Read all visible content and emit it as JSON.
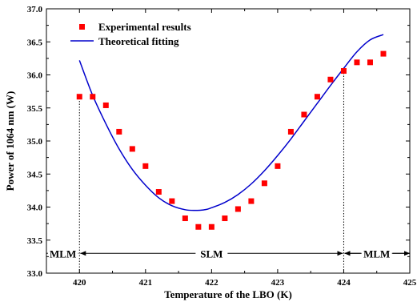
{
  "chart_data": {
    "type": "scatter",
    "title": "",
    "xlabel": "Temperature of the LBO (K)",
    "ylabel": "Power of 1064 nm (W)",
    "xlim": [
      419.5,
      425
    ],
    "ylim": [
      33.0,
      37.0
    ],
    "xticks": [
      420,
      421,
      422,
      423,
      424,
      425
    ],
    "yticks": [
      33.0,
      33.5,
      34.0,
      34.5,
      35.0,
      35.5,
      36.0,
      36.5,
      37.0
    ],
    "grid": false,
    "legend_position": "top-left",
    "series": [
      {
        "name": "Experimental results",
        "kind": "scatter",
        "color": "#ff0000",
        "x": [
          420.0,
          420.2,
          420.4,
          420.6,
          420.8,
          421.0,
          421.2,
          421.4,
          421.6,
          421.8,
          422.0,
          422.2,
          422.4,
          422.6,
          422.8,
          423.0,
          423.2,
          423.4,
          423.6,
          423.8,
          424.0,
          424.2,
          424.4,
          424.6
        ],
        "y": [
          35.67,
          35.67,
          35.54,
          35.14,
          34.88,
          34.62,
          34.23,
          34.09,
          33.83,
          33.7,
          33.7,
          33.83,
          33.97,
          34.09,
          34.36,
          34.62,
          35.14,
          35.4,
          35.67,
          35.93,
          36.06,
          36.19,
          36.19,
          36.32
        ]
      },
      {
        "name": "Theoretical fitting",
        "kind": "line",
        "color": "#0000cc",
        "x": [
          420.0,
          420.2,
          420.4,
          420.6,
          420.8,
          421.0,
          421.2,
          421.4,
          421.6,
          421.75,
          421.9,
          422.0,
          422.2,
          422.4,
          422.6,
          422.8,
          423.0,
          423.2,
          423.4,
          423.6,
          423.8,
          424.0,
          424.2,
          424.4,
          424.6
        ],
        "y": [
          36.22,
          35.69,
          35.26,
          34.88,
          34.57,
          34.33,
          34.14,
          34.02,
          33.96,
          33.95,
          33.96,
          33.99,
          34.07,
          34.19,
          34.35,
          34.55,
          34.78,
          35.03,
          35.3,
          35.57,
          35.84,
          36.1,
          36.35,
          36.53,
          36.61
        ]
      }
    ],
    "annotations": {
      "boundaries": [
        420,
        424
      ],
      "regions": [
        {
          "label": "MLM",
          "from": 419.5,
          "to": 420
        },
        {
          "label": "SLM",
          "from": 420,
          "to": 424
        },
        {
          "label": "MLM",
          "from": 424,
          "to": 425
        }
      ],
      "arrow_y": 33.3
    }
  }
}
